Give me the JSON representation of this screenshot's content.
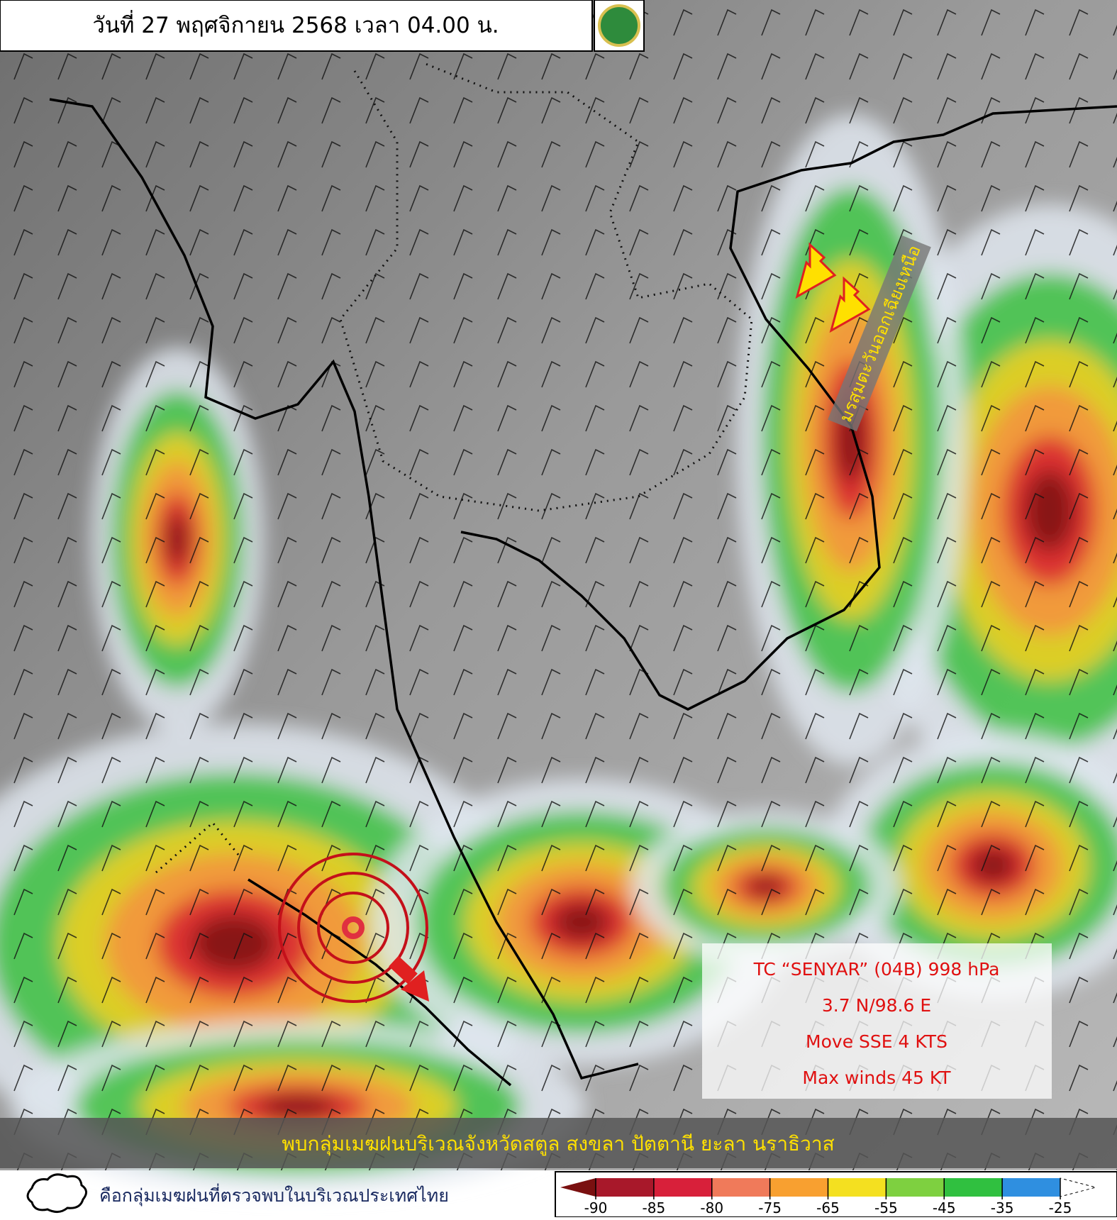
{
  "header": {
    "title": "วันที่ 27 พฤศจิกายน 2568 เวลา 04.00 น."
  },
  "annotations": {
    "monsoon": "มรสุมตะวันออกเฉียงเหนือ",
    "storm": [
      "TC “SENYAR” (04B) 998 hPa",
      "3.7 N/98.6 E",
      "Move SSE 4 KTS",
      "Max winds 45 KT"
    ],
    "banner": "พบกลุ่มเมฆฝนบริเวณจังหวัดสตูล สงขลา ปัตตานี ยะลา นราธิวาส"
  },
  "legend": {
    "label": "คือกลุ่มเมฆฝนที่ตรวจพบในบริเวณประเทศไทย"
  },
  "colorbar": {
    "ticks": [
      -90,
      -85,
      -80,
      -75,
      -65,
      -55,
      -45,
      -35,
      -25
    ],
    "colors": [
      "#7a1010",
      "#a8182a",
      "#d8203a",
      "#f07a5a",
      "#f8a030",
      "#f4e020",
      "#7ed040",
      "#30c040",
      "#2f8fe0",
      "#ffffff"
    ]
  }
}
